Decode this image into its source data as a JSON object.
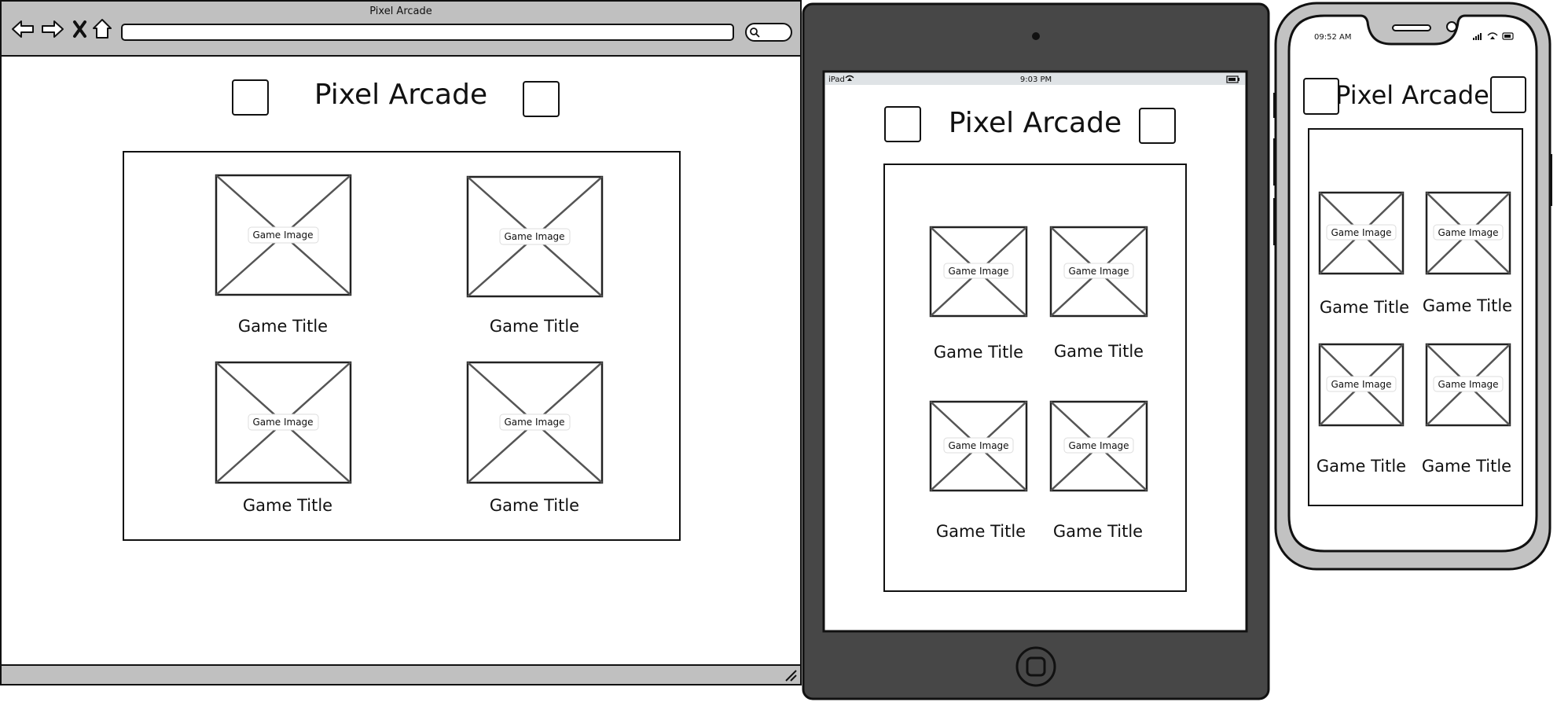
{
  "browser": {
    "window_title": "Pixel Arcade",
    "page_title": "Pixel Arcade",
    "cards": [
      {
        "image_label": "Game Image",
        "title": "Game Title"
      },
      {
        "image_label": "Game Image",
        "title": "Game Title"
      },
      {
        "image_label": "Game Image",
        "title": "Game Title"
      },
      {
        "image_label": "Game Image",
        "title": "Game Title"
      }
    ]
  },
  "tablet": {
    "status_left": "iPad",
    "status_time": "9:03 PM",
    "page_title": "Pixel Arcade",
    "cards": [
      {
        "image_label": "Game Image",
        "title": "Game Title"
      },
      {
        "image_label": "Game Image",
        "title": "Game Title"
      },
      {
        "image_label": "Game Image",
        "title": "Game Title"
      },
      {
        "image_label": "Game Image",
        "title": "Game Title"
      }
    ]
  },
  "phone": {
    "status_time": "09:52 AM",
    "page_title": "Pixel Arcade",
    "cards": [
      {
        "image_label": "Game Image",
        "title": "Game Title"
      },
      {
        "image_label": "Game Image",
        "title": "Game Title"
      },
      {
        "image_label": "Game Image",
        "title": "Game Title"
      },
      {
        "image_label": "Game Image",
        "title": "Game Title"
      }
    ]
  }
}
